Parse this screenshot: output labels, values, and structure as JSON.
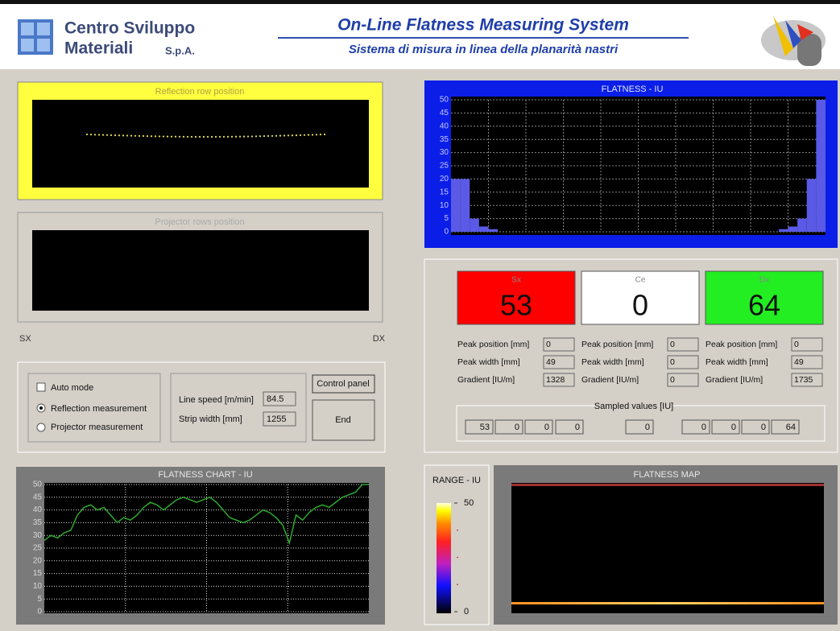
{
  "header": {
    "company_line1": "Centro Sviluppo",
    "company_line2": "Materiali",
    "company_suffix": "S.p.A.",
    "title": "On-Line Flatness Measuring System",
    "subtitle": "Sistema di misura in linea della planarità nastri"
  },
  "reflection_panel": {
    "title": "Reflection row position"
  },
  "projector_panel": {
    "title": "Projector rows position"
  },
  "side_labels": {
    "left": "SX",
    "right": "DX"
  },
  "controls": {
    "auto_mode": "Auto mode",
    "reflection_measurement": "Reflection measurement",
    "projector_measurement": "Projector measurement",
    "line_speed_label": "Line speed [m/min]",
    "line_speed": 84.5,
    "strip_width_label": "Strip width [mm]",
    "strip_width": 1255,
    "control_panel_button": "Control panel",
    "end_button": "End"
  },
  "flatness_profile": {
    "title": "FLATNESS - IU",
    "ylim": [
      0,
      50
    ],
    "yticks": [
      0,
      5,
      10,
      15,
      20,
      25,
      30,
      35,
      40,
      45,
      50
    ],
    "color": "#5a5ae6",
    "values": [
      20,
      20,
      5,
      2,
      1,
      0,
      0,
      0,
      0,
      0,
      0,
      0,
      0,
      0,
      0,
      0,
      0,
      0,
      0,
      0,
      0,
      0,
      0,
      0,
      0,
      0,
      0,
      0,
      0,
      0,
      0,
      0,
      0,
      0,
      0,
      1,
      2,
      5,
      20,
      50
    ]
  },
  "gauges": [
    {
      "label": "Sx",
      "value": 53,
      "color": "#ff0000",
      "fields": [
        {
          "label": "Peak position [mm]",
          "value": 0
        },
        {
          "label": "Peak width [mm]",
          "value": 49
        },
        {
          "label": "Gradient [IU/m]",
          "value": 1328
        }
      ]
    },
    {
      "label": "Ce",
      "value": 0,
      "color": "#ffffff",
      "fields": [
        {
          "label": "Peak position [mm]",
          "value": 0
        },
        {
          "label": "Peak width [mm]",
          "value": 0
        },
        {
          "label": "Gradient [IU/m]",
          "value": 0
        }
      ]
    },
    {
      "label": "Dx",
      "value": 64,
      "color": "#22ee22",
      "fields": [
        {
          "label": "Peak position [mm]",
          "value": 0
        },
        {
          "label": "Peak width [mm]",
          "value": 49
        },
        {
          "label": "Gradient [IU/m]",
          "value": 1735
        }
      ]
    }
  ],
  "sampled_values": {
    "title": "Sampled values [IU]",
    "values": [
      53,
      0,
      0,
      0,
      0,
      0,
      0,
      0,
      64
    ]
  },
  "flatness_chart": {
    "title": "FLATNESS CHART - IU",
    "ylim": [
      0,
      50
    ],
    "yticks": [
      0,
      5,
      10,
      15,
      20,
      25,
      30,
      35,
      40,
      45,
      50
    ],
    "color": "#2ea82e",
    "values": [
      28,
      30,
      29,
      31,
      32,
      38,
      41,
      42,
      40,
      41,
      38,
      35,
      37,
      36,
      38,
      41,
      43,
      42,
      40,
      42,
      44,
      45,
      44,
      43,
      44,
      45,
      43,
      40,
      37,
      36,
      35,
      36,
      38,
      40,
      39,
      37,
      34,
      27,
      38,
      36,
      39,
      41,
      42,
      41,
      43,
      45,
      46,
      47,
      50,
      50
    ]
  },
  "range": {
    "title": "RANGE - IU",
    "ylim": [
      0,
      50
    ],
    "yticks": [
      0,
      50
    ]
  },
  "flatness_map": {
    "title": "FLATNESS MAP"
  }
}
